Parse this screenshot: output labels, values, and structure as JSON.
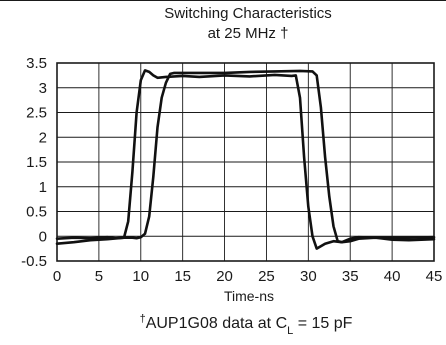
{
  "chart_data": {
    "type": "line",
    "title": "Switching Characteristics",
    "subtitle": "at 25 MHz †",
    "xlabel": "Time-ns",
    "ylabel": "",
    "xlim": [
      0,
      45
    ],
    "ylim": [
      -0.5,
      3.5
    ],
    "x_ticks": [
      "0",
      "5",
      "10",
      "15",
      "20",
      "25",
      "30",
      "35",
      "40",
      "45"
    ],
    "y_ticks": [
      "3.5",
      "3",
      "2.5",
      "2",
      "1.5",
      "1",
      "0.5",
      "0",
      "-0.5"
    ],
    "grid": true,
    "footnote": {
      "mark": "†",
      "text_pre": "AUP1G08 data at C",
      "subscript": "L",
      "text_post": " = 15 pF"
    },
    "series": [
      {
        "x": [
          0,
          2,
          4,
          6,
          7,
          8,
          8.5,
          9,
          9.5,
          10,
          10.5,
          11,
          11.5,
          12,
          13,
          15,
          17,
          20,
          23,
          26,
          28,
          28.5,
          29,
          29.5,
          30,
          30.5,
          31,
          32,
          33,
          34,
          35,
          36,
          38,
          40,
          42,
          45
        ],
        "y": [
          -0.05,
          -0.03,
          -0.04,
          -0.02,
          -0.04,
          -0.03,
          0.3,
          1.3,
          2.5,
          3.15,
          3.35,
          3.32,
          3.25,
          3.2,
          3.22,
          3.24,
          3.22,
          3.25,
          3.23,
          3.26,
          3.24,
          3.25,
          2.8,
          1.6,
          0.6,
          0.0,
          -0.25,
          -0.15,
          -0.1,
          -0.12,
          -0.05,
          -0.02,
          -0.03,
          -0.03,
          -0.03,
          -0.02
        ]
      },
      {
        "x": [
          0,
          2,
          4,
          6,
          8,
          9,
          9.5,
          10,
          10.5,
          11,
          11.5,
          12,
          12.5,
          13,
          13.5,
          14,
          15,
          17,
          20,
          23,
          26,
          29,
          30.5,
          31,
          31.5,
          32,
          32.5,
          33,
          33.5,
          34,
          35,
          36,
          38,
          40,
          42,
          45
        ],
        "y": [
          -0.15,
          -0.12,
          -0.08,
          -0.06,
          -0.03,
          -0.03,
          -0.04,
          -0.02,
          0.05,
          0.4,
          1.2,
          2.2,
          2.8,
          3.1,
          3.28,
          3.3,
          3.3,
          3.3,
          3.3,
          3.32,
          3.33,
          3.34,
          3.33,
          3.25,
          2.6,
          1.6,
          0.8,
          0.2,
          -0.1,
          -0.12,
          -0.1,
          -0.05,
          -0.03,
          -0.07,
          -0.08,
          -0.06
        ]
      }
    ]
  }
}
